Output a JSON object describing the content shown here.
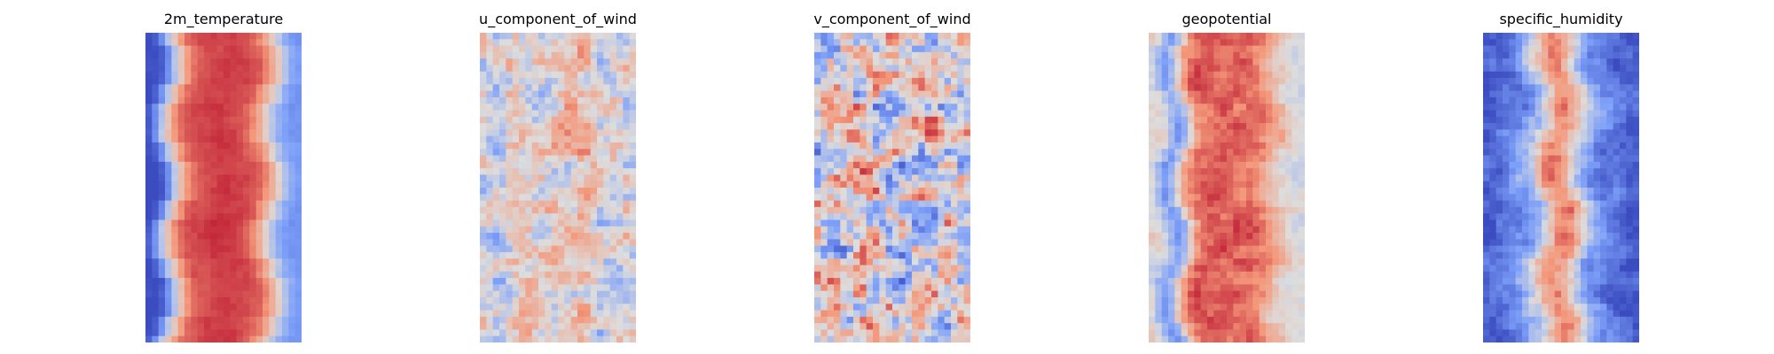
{
  "chart_data": [
    {
      "type": "heatmap",
      "title": "2m_temperature",
      "colormap": "coolwarm",
      "grid": false,
      "axes_visible": false,
      "profile": [
        -1.0,
        -0.9,
        -0.6,
        -0.2,
        0.2,
        0.5,
        0.65,
        0.72,
        0.75,
        0.78,
        0.8,
        0.82,
        0.82,
        0.8,
        0.78,
        0.74,
        0.68,
        0.55,
        0.35,
        0.1,
        -0.2,
        -0.4,
        -0.5,
        -0.55
      ],
      "noise": 0.08,
      "waviness": 0.04
    },
    {
      "type": "heatmap",
      "title": "u_component_of_wind",
      "colormap": "coolwarm",
      "grid": false,
      "axes_visible": false,
      "profile": [
        0.0,
        -0.1,
        -0.15,
        -0.1,
        0.05,
        0.15,
        0.2,
        0.15,
        0.1,
        0.05,
        0.0,
        0.05,
        0.1,
        0.15,
        0.2,
        0.15,
        0.1,
        0.0,
        -0.1,
        -0.15,
        -0.1,
        0.0,
        0.05,
        0.0
      ],
      "noise": 0.55,
      "waviness": 0.03
    },
    {
      "type": "heatmap",
      "title": "v_component_of_wind",
      "colormap": "coolwarm",
      "grid": false,
      "axes_visible": false,
      "profile": [
        0.0,
        0.0,
        0.0,
        0.0,
        0.0,
        0.0,
        0.0,
        0.0,
        0.0,
        0.0,
        0.0,
        0.0,
        0.0,
        0.0,
        0.0,
        0.0,
        0.0,
        0.0,
        0.0,
        0.0,
        0.0,
        0.0,
        0.0,
        0.0
      ],
      "noise": 0.95,
      "waviness": 0.0
    },
    {
      "type": "heatmap",
      "title": "geopotential",
      "colormap": "coolwarm",
      "grid": false,
      "axes_visible": false,
      "profile": [
        0.05,
        -0.05,
        -0.3,
        -0.5,
        -0.3,
        0.1,
        0.45,
        0.62,
        0.7,
        0.72,
        0.72,
        0.7,
        0.68,
        0.66,
        0.65,
        0.62,
        0.58,
        0.5,
        0.4,
        0.28,
        0.15,
        0.05,
        0.0,
        -0.05
      ],
      "noise": 0.22,
      "waviness": 0.05
    },
    {
      "type": "heatmap",
      "title": "specific_humidity",
      "colormap": "coolwarm",
      "grid": false,
      "axes_visible": false,
      "profile": [
        -0.9,
        -0.85,
        -0.8,
        -0.75,
        -0.7,
        -0.6,
        -0.45,
        -0.3,
        -0.1,
        0.2,
        0.45,
        0.55,
        0.5,
        0.3,
        0.05,
        -0.2,
        -0.4,
        -0.55,
        -0.65,
        -0.75,
        -0.8,
        -0.85,
        -0.9,
        -0.9
      ],
      "noise": 0.28,
      "waviness": 0.06
    }
  ]
}
